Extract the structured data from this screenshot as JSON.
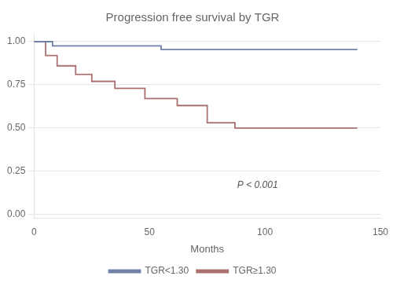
{
  "chart_data": {
    "type": "line",
    "title": "Progression free survival by TGR",
    "xlabel": "Months",
    "xlim": [
      0,
      150
    ],
    "ylim": [
      -0.02,
      1.05
    ],
    "xticks": [
      0,
      50,
      100,
      150
    ],
    "yticks": [
      {
        "value": 0.0,
        "label": "0.00"
      },
      {
        "value": 0.25,
        "label": "0.25"
      },
      {
        "value": 0.5,
        "label": "0.50"
      },
      {
        "value": 0.75,
        "label": "0.75"
      },
      {
        "value": 1.0,
        "label": "1.00"
      }
    ],
    "grid": "y",
    "legend": "bottom",
    "line_style": "step",
    "series": [
      {
        "name": "TGR<1.30",
        "color": "#7080a8",
        "x": [
          0,
          8,
          8,
          55,
          55,
          140
        ],
        "values": [
          1.0,
          1.0,
          0.975,
          0.975,
          0.955,
          0.955
        ]
      },
      {
        "name": "TGR≥1.30",
        "color": "#aa7070",
        "x": [
          0,
          5,
          5,
          10,
          10,
          18,
          18,
          25,
          25,
          35,
          35,
          48,
          48,
          62,
          62,
          75,
          75,
          87,
          87,
          140
        ],
        "values": [
          1.0,
          1.0,
          0.92,
          0.92,
          0.86,
          0.86,
          0.81,
          0.81,
          0.77,
          0.77,
          0.73,
          0.73,
          0.67,
          0.67,
          0.63,
          0.63,
          0.53,
          0.53,
          0.5,
          0.5
        ]
      }
    ],
    "annotations": [
      {
        "text": "P < 0.001",
        "x": 88,
        "y": 0.17
      }
    ]
  }
}
